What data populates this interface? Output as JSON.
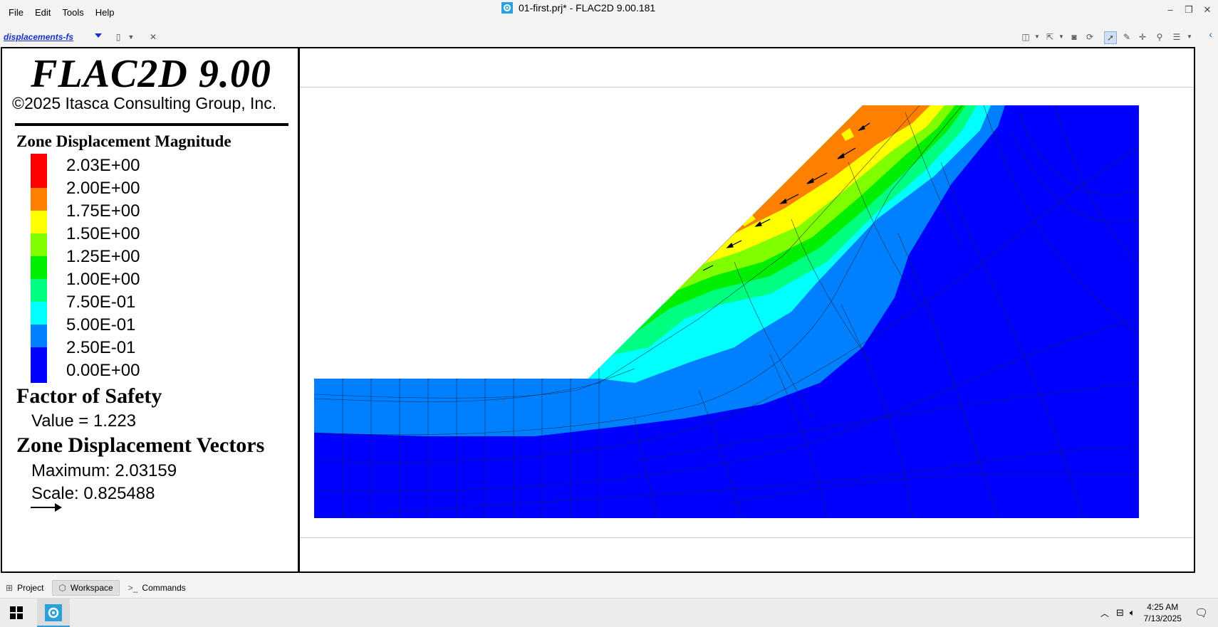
{
  "window": {
    "title": "01-first.prj* - FLAC2D 9.00.181",
    "menu": [
      "File",
      "Edit",
      "Tools",
      "Help"
    ],
    "controls": {
      "minimize": "–",
      "restore": "❐",
      "close": "✕"
    }
  },
  "toolbar": {
    "view_name": "displacements-fs",
    "icons": [
      "layout-icon",
      "export-icon",
      "camera-icon",
      "reset-icon",
      "select-icon",
      "edit-icon",
      "crosshair-icon",
      "link-icon",
      "settings-icon"
    ]
  },
  "legend": {
    "title": "FLAC2D 9.00",
    "copyright": "©2025 Itasca Consulting Group, Inc.",
    "contour_title": "Zone Displacement Magnitude",
    "levels": [
      "2.03E+00",
      "2.00E+00",
      "1.75E+00",
      "1.50E+00",
      "1.25E+00",
      "1.00E+00",
      "7.50E-01",
      "5.00E-01",
      "2.50E-01",
      "0.00E+00"
    ],
    "colors": [
      "#ff0000",
      "#ff8000",
      "#ffff00",
      "#80ff00",
      "#00ee00",
      "#00ff80",
      "#00ffff",
      "#0080ff",
      "#0000ff"
    ],
    "fos_title": "Factor of Safety",
    "fos_value": "Value = 1.223",
    "vectors_title": "Zone Displacement Vectors",
    "vectors_max": "Maximum: 2.03159",
    "vectors_scale": "Scale: 0.825488"
  },
  "tabs": [
    "Project",
    "Workspace",
    "Commands"
  ],
  "taskbar": {
    "time": "4:25 AM",
    "date": "7/13/2025"
  }
}
